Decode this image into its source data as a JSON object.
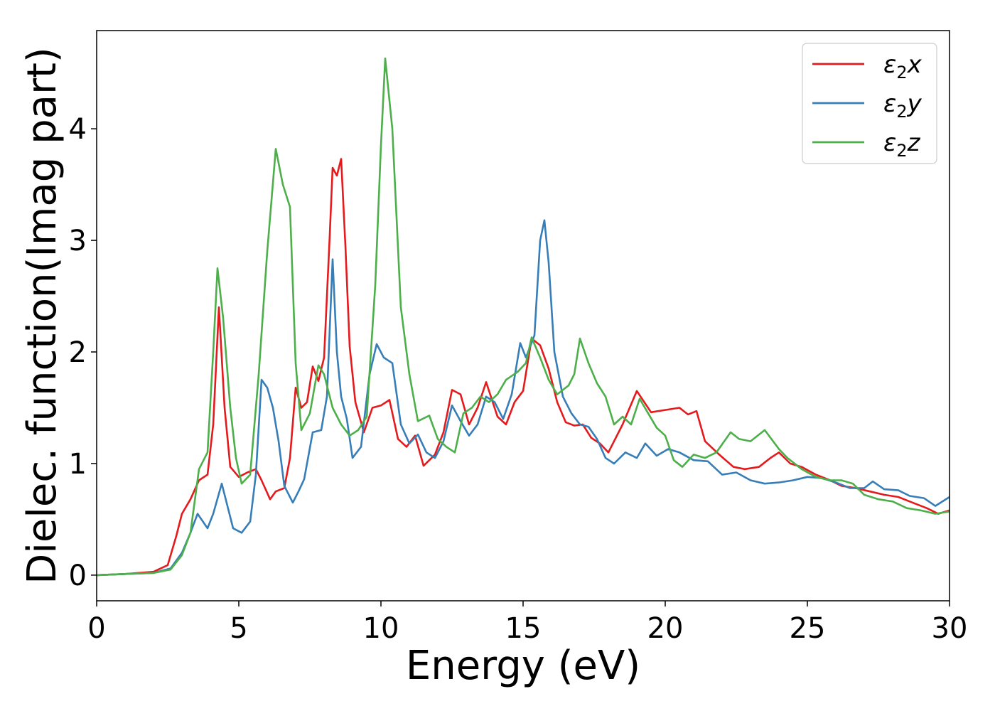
{
  "chart_data": {
    "type": "line",
    "title": "",
    "xlabel": "Energy (eV)",
    "ylabel": "Dielec. function(Imag part)",
    "xlim": [
      0,
      30
    ],
    "ylim": [
      -0.23,
      4.88
    ],
    "xticks": [
      0,
      5,
      10,
      15,
      20,
      25,
      30
    ],
    "yticks": [
      0,
      1,
      2,
      3,
      4
    ],
    "grid": false,
    "legend_position": "top-right",
    "series": [
      {
        "name": "ε2x",
        "legend_main": "ε",
        "legend_sub": "2",
        "legend_tail": "x",
        "color": "#e41a1c",
        "points": [
          [
            0,
            0
          ],
          [
            1,
            0.01
          ],
          [
            2,
            0.03
          ],
          [
            2.5,
            0.09
          ],
          [
            2.8,
            0.35
          ],
          [
            3,
            0.55
          ],
          [
            3.3,
            0.68
          ],
          [
            3.6,
            0.85
          ],
          [
            3.9,
            0.9
          ],
          [
            4.1,
            1.35
          ],
          [
            4.3,
            2.4
          ],
          [
            4.5,
            1.5
          ],
          [
            4.7,
            0.97
          ],
          [
            5,
            0.88
          ],
          [
            5.3,
            0.92
          ],
          [
            5.6,
            0.95
          ],
          [
            5.8,
            0.85
          ],
          [
            6.1,
            0.68
          ],
          [
            6.3,
            0.75
          ],
          [
            6.6,
            0.78
          ],
          [
            6.8,
            1.05
          ],
          [
            7,
            1.68
          ],
          [
            7.2,
            1.5
          ],
          [
            7.4,
            1.55
          ],
          [
            7.6,
            1.87
          ],
          [
            7.8,
            1.74
          ],
          [
            8,
            1.95
          ],
          [
            8.2,
            3.05
          ],
          [
            8.3,
            3.65
          ],
          [
            8.45,
            3.58
          ],
          [
            8.6,
            3.73
          ],
          [
            8.75,
            2.95
          ],
          [
            8.9,
            2.05
          ],
          [
            9.1,
            1.55
          ],
          [
            9.4,
            1.28
          ],
          [
            9.7,
            1.5
          ],
          [
            10,
            1.52
          ],
          [
            10.3,
            1.57
          ],
          [
            10.6,
            1.22
          ],
          [
            10.9,
            1.15
          ],
          [
            11.2,
            1.25
          ],
          [
            11.5,
            0.98
          ],
          [
            11.9,
            1.08
          ],
          [
            12.2,
            1.28
          ],
          [
            12.5,
            1.66
          ],
          [
            12.8,
            1.62
          ],
          [
            13.1,
            1.35
          ],
          [
            13.4,
            1.5
          ],
          [
            13.7,
            1.73
          ],
          [
            14.1,
            1.42
          ],
          [
            14.4,
            1.35
          ],
          [
            14.7,
            1.55
          ],
          [
            15,
            1.65
          ],
          [
            15.3,
            2.12
          ],
          [
            15.6,
            2.06
          ],
          [
            15.9,
            1.85
          ],
          [
            16.2,
            1.55
          ],
          [
            16.5,
            1.37
          ],
          [
            16.8,
            1.34
          ],
          [
            17.1,
            1.35
          ],
          [
            17.4,
            1.23
          ],
          [
            17.7,
            1.18
          ],
          [
            18,
            1.1
          ],
          [
            18.5,
            1.35
          ],
          [
            19,
            1.65
          ],
          [
            19.5,
            1.46
          ],
          [
            20,
            1.48
          ],
          [
            20.5,
            1.5
          ],
          [
            20.8,
            1.44
          ],
          [
            21.1,
            1.47
          ],
          [
            21.4,
            1.2
          ],
          [
            21.9,
            1.08
          ],
          [
            22.4,
            0.97
          ],
          [
            22.8,
            0.95
          ],
          [
            23.3,
            0.97
          ],
          [
            23.7,
            1.05
          ],
          [
            24,
            1.1
          ],
          [
            24.4,
            1.0
          ],
          [
            24.8,
            0.97
          ],
          [
            25.3,
            0.9
          ],
          [
            25.8,
            0.85
          ],
          [
            26.2,
            0.8
          ],
          [
            26.7,
            0.78
          ],
          [
            27.2,
            0.75
          ],
          [
            27.7,
            0.72
          ],
          [
            28.2,
            0.7
          ],
          [
            28.7,
            0.65
          ],
          [
            29.2,
            0.6
          ],
          [
            29.6,
            0.55
          ],
          [
            30,
            0.58
          ]
        ]
      },
      {
        "name": "ε2y",
        "legend_main": "ε",
        "legend_sub": "2",
        "legend_tail": "y",
        "color": "#377eb8",
        "points": [
          [
            0,
            0
          ],
          [
            1,
            0.01
          ],
          [
            2,
            0.02
          ],
          [
            2.6,
            0.06
          ],
          [
            3,
            0.2
          ],
          [
            3.3,
            0.38
          ],
          [
            3.55,
            0.55
          ],
          [
            3.9,
            0.42
          ],
          [
            4.1,
            0.55
          ],
          [
            4.4,
            0.82
          ],
          [
            4.6,
            0.62
          ],
          [
            4.8,
            0.42
          ],
          [
            5.1,
            0.38
          ],
          [
            5.4,
            0.48
          ],
          [
            5.6,
            0.9
          ],
          [
            5.8,
            1.75
          ],
          [
            6,
            1.68
          ],
          [
            6.2,
            1.5
          ],
          [
            6.4,
            1.2
          ],
          [
            6.6,
            0.8
          ],
          [
            6.9,
            0.65
          ],
          [
            7.1,
            0.75
          ],
          [
            7.3,
            0.86
          ],
          [
            7.6,
            1.28
          ],
          [
            7.9,
            1.3
          ],
          [
            8.1,
            1.6
          ],
          [
            8.3,
            2.83
          ],
          [
            8.45,
            2.0
          ],
          [
            8.6,
            1.6
          ],
          [
            8.8,
            1.4
          ],
          [
            9,
            1.05
          ],
          [
            9.3,
            1.15
          ],
          [
            9.6,
            1.8
          ],
          [
            9.85,
            2.07
          ],
          [
            10.1,
            1.95
          ],
          [
            10.4,
            1.9
          ],
          [
            10.7,
            1.35
          ],
          [
            11,
            1.18
          ],
          [
            11.3,
            1.26
          ],
          [
            11.6,
            1.1
          ],
          [
            11.9,
            1.05
          ],
          [
            12.2,
            1.2
          ],
          [
            12.5,
            1.52
          ],
          [
            12.8,
            1.38
          ],
          [
            13.1,
            1.25
          ],
          [
            13.4,
            1.35
          ],
          [
            13.7,
            1.6
          ],
          [
            14,
            1.55
          ],
          [
            14.3,
            1.4
          ],
          [
            14.6,
            1.62
          ],
          [
            14.9,
            2.08
          ],
          [
            15.1,
            1.95
          ],
          [
            15.4,
            2.15
          ],
          [
            15.6,
            3.0
          ],
          [
            15.75,
            3.18
          ],
          [
            15.9,
            2.8
          ],
          [
            16.1,
            2.0
          ],
          [
            16.4,
            1.6
          ],
          [
            16.7,
            1.45
          ],
          [
            17,
            1.35
          ],
          [
            17.3,
            1.33
          ],
          [
            17.6,
            1.22
          ],
          [
            17.9,
            1.05
          ],
          [
            18.2,
            1.0
          ],
          [
            18.6,
            1.1
          ],
          [
            19,
            1.05
          ],
          [
            19.3,
            1.18
          ],
          [
            19.7,
            1.07
          ],
          [
            20.1,
            1.13
          ],
          [
            20.5,
            1.1
          ],
          [
            21,
            1.03
          ],
          [
            21.5,
            1.02
          ],
          [
            22,
            0.9
          ],
          [
            22.5,
            0.92
          ],
          [
            23,
            0.85
          ],
          [
            23.5,
            0.82
          ],
          [
            24,
            0.83
          ],
          [
            24.5,
            0.85
          ],
          [
            25,
            0.88
          ],
          [
            25.5,
            0.87
          ],
          [
            26,
            0.83
          ],
          [
            26.5,
            0.78
          ],
          [
            27,
            0.78
          ],
          [
            27.3,
            0.84
          ],
          [
            27.7,
            0.77
          ],
          [
            28.2,
            0.76
          ],
          [
            28.6,
            0.71
          ],
          [
            29.1,
            0.69
          ],
          [
            29.5,
            0.62
          ],
          [
            30,
            0.7
          ]
        ]
      },
      {
        "name": "ε2z",
        "legend_main": "ε",
        "legend_sub": "2",
        "legend_tail": "z",
        "color": "#4daf4a",
        "points": [
          [
            0,
            0
          ],
          [
            1,
            0.01
          ],
          [
            2,
            0.02
          ],
          [
            2.6,
            0.05
          ],
          [
            3,
            0.18
          ],
          [
            3.3,
            0.38
          ],
          [
            3.6,
            0.95
          ],
          [
            3.9,
            1.1
          ],
          [
            4.1,
            2.0
          ],
          [
            4.25,
            2.75
          ],
          [
            4.45,
            2.3
          ],
          [
            4.7,
            1.5
          ],
          [
            4.9,
            1.05
          ],
          [
            5.1,
            0.82
          ],
          [
            5.4,
            0.9
          ],
          [
            5.7,
            1.8
          ],
          [
            6,
            2.9
          ],
          [
            6.3,
            3.82
          ],
          [
            6.55,
            3.5
          ],
          [
            6.8,
            3.3
          ],
          [
            7,
            1.9
          ],
          [
            7.2,
            1.3
          ],
          [
            7.5,
            1.45
          ],
          [
            7.8,
            1.88
          ],
          [
            8,
            1.8
          ],
          [
            8.3,
            1.5
          ],
          [
            8.6,
            1.35
          ],
          [
            8.9,
            1.25
          ],
          [
            9.2,
            1.3
          ],
          [
            9.5,
            1.42
          ],
          [
            9.8,
            2.6
          ],
          [
            10,
            3.85
          ],
          [
            10.15,
            4.63
          ],
          [
            10.4,
            4.0
          ],
          [
            10.7,
            2.4
          ],
          [
            11,
            1.8
          ],
          [
            11.3,
            1.38
          ],
          [
            11.7,
            1.43
          ],
          [
            12,
            1.22
          ],
          [
            12.3,
            1.15
          ],
          [
            12.6,
            1.1
          ],
          [
            12.9,
            1.45
          ],
          [
            13.2,
            1.5
          ],
          [
            13.5,
            1.6
          ],
          [
            13.8,
            1.55
          ],
          [
            14.1,
            1.62
          ],
          [
            14.4,
            1.75
          ],
          [
            14.8,
            1.82
          ],
          [
            15.1,
            1.9
          ],
          [
            15.3,
            2.13
          ],
          [
            15.6,
            1.95
          ],
          [
            15.9,
            1.75
          ],
          [
            16.2,
            1.62
          ],
          [
            16.6,
            1.7
          ],
          [
            16.8,
            1.8
          ],
          [
            17,
            2.12
          ],
          [
            17.3,
            1.9
          ],
          [
            17.6,
            1.72
          ],
          [
            17.9,
            1.6
          ],
          [
            18.2,
            1.35
          ],
          [
            18.5,
            1.42
          ],
          [
            18.8,
            1.35
          ],
          [
            19.1,
            1.58
          ],
          [
            19.4,
            1.45
          ],
          [
            19.7,
            1.32
          ],
          [
            20,
            1.25
          ],
          [
            20.3,
            1.03
          ],
          [
            20.6,
            0.97
          ],
          [
            21,
            1.08
          ],
          [
            21.4,
            1.05
          ],
          [
            21.8,
            1.1
          ],
          [
            22.3,
            1.28
          ],
          [
            22.6,
            1.22
          ],
          [
            23,
            1.2
          ],
          [
            23.5,
            1.3
          ],
          [
            24,
            1.13
          ],
          [
            24.3,
            1.05
          ],
          [
            24.8,
            0.95
          ],
          [
            25.3,
            0.88
          ],
          [
            25.8,
            0.85
          ],
          [
            26.2,
            0.85
          ],
          [
            26.6,
            0.82
          ],
          [
            27,
            0.72
          ],
          [
            27.5,
            0.68
          ],
          [
            28,
            0.66
          ],
          [
            28.5,
            0.6
          ],
          [
            29,
            0.58
          ],
          [
            29.5,
            0.55
          ],
          [
            30,
            0.57
          ]
        ]
      }
    ]
  }
}
